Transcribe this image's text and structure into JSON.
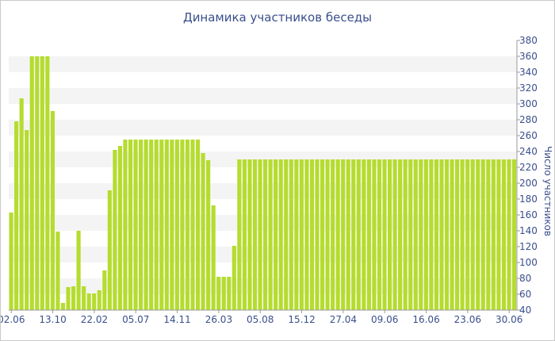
{
  "chart_data": {
    "type": "bar",
    "title": "Динамика участников беседы",
    "ylabel": "Число участников",
    "xlabel": "",
    "ylim": [
      40,
      380
    ],
    "yticks": [
      40,
      60,
      80,
      100,
      120,
      140,
      160,
      180,
      200,
      220,
      240,
      260,
      280,
      300,
      320,
      340,
      360,
      380
    ],
    "x_tick_labels": [
      "02.06",
      "13.10",
      "22.02",
      "05.07",
      "14.11",
      "26.03",
      "05.08",
      "15.12",
      "27.04",
      "09.06",
      "16.06",
      "23.06",
      "30.06"
    ],
    "x_tick_indices": [
      0,
      8,
      16,
      24,
      32,
      40,
      48,
      56,
      64,
      72,
      80,
      88,
      96
    ],
    "grid": "alternating horizontal bands",
    "y_axis_position": "right",
    "bar_color": "#b5dc2f",
    "values": [
      163,
      278,
      307,
      267,
      360,
      360,
      360,
      360,
      291,
      139,
      49,
      69,
      70,
      140,
      70,
      61,
      61,
      65,
      90,
      191,
      242,
      247,
      255,
      255,
      255,
      255,
      255,
      255,
      255,
      255,
      255,
      255,
      255,
      255,
      255,
      255,
      255,
      238,
      229,
      172,
      82,
      82,
      82,
      121,
      230,
      230,
      230,
      230,
      230,
      230,
      230,
      230,
      230,
      230,
      230,
      230,
      230,
      230,
      230,
      230,
      230,
      230,
      230,
      230,
      230,
      230,
      230,
      230,
      230,
      230,
      230,
      230,
      230,
      230,
      230,
      230,
      230,
      230,
      230,
      230,
      230,
      230,
      230,
      230,
      230,
      230,
      230,
      230,
      230,
      230,
      230,
      230,
      230,
      230,
      230,
      230,
      230,
      230
    ]
  }
}
